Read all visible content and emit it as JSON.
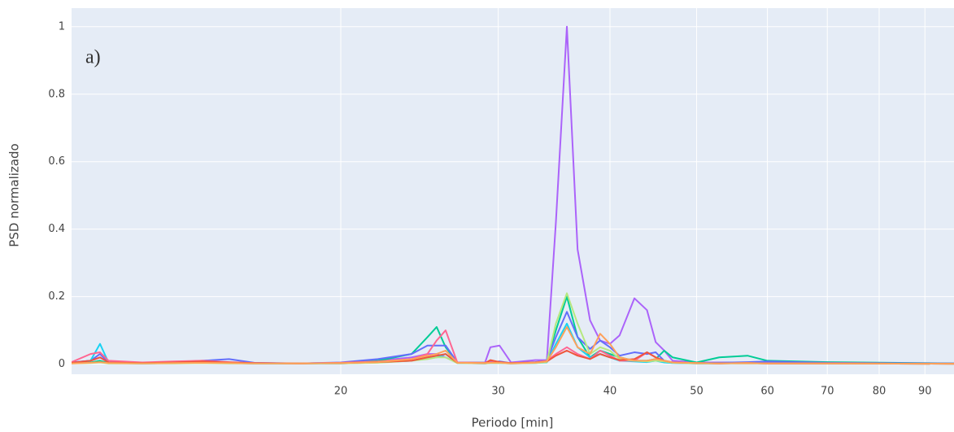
{
  "chart_data": {
    "type": "line",
    "annotation": "a)",
    "x_label": "Periodo [min]",
    "y_label": "PSD normalizado",
    "log_x": true,
    "grid": true,
    "xlim": [
      10,
      97
    ],
    "xticks": [
      20,
      30,
      40,
      50,
      60,
      70,
      80,
      90
    ],
    "ylim": [
      -0.03,
      1.055
    ],
    "yticks": [
      0,
      0.2,
      0.4,
      0.6,
      0.8,
      1
    ],
    "x": [
      10,
      10.5,
      10.76,
      11,
      12,
      13,
      14,
      15,
      16,
      18,
      20,
      22,
      24,
      25,
      25.6,
      26.2,
      27,
      29,
      29.4,
      30.1,
      31,
      33,
      34,
      34.8,
      35.8,
      36.8,
      38,
      39,
      40,
      41,
      42.6,
      44,
      45,
      46,
      47,
      50,
      53,
      57,
      60,
      70,
      97
    ],
    "series": [
      {
        "color": "#ab63fa",
        "values": [
          0.005,
          0.01,
          0.02,
          0.005,
          0.003,
          0.005,
          0.008,
          0.004,
          0.002,
          0.002,
          0.004,
          0.01,
          0.02,
          0.03,
          0.03,
          0.02,
          0.004,
          0.005,
          0.05,
          0.055,
          0.005,
          0.012,
          0.012,
          0.42,
          1,
          0.34,
          0.13,
          0.07,
          0.06,
          0.085,
          0.195,
          0.16,
          0.065,
          0.04,
          0.01,
          0.005,
          0.005,
          0.005,
          0.004,
          0.003,
          0.002
        ]
      },
      {
        "color": "#00cc96",
        "values": [
          0.003,
          0.005,
          0.01,
          0.003,
          0.002,
          0.003,
          0.005,
          0.003,
          0.002,
          0.002,
          0.003,
          0.01,
          0.03,
          0.08,
          0.11,
          0.05,
          0.005,
          0.004,
          0.005,
          0.004,
          0.003,
          0.005,
          0.01,
          0.1,
          0.2,
          0.08,
          0.02,
          0.04,
          0.03,
          0.02,
          0.01,
          0.01,
          0.015,
          0.04,
          0.02,
          0.005,
          0.02,
          0.025,
          0.01,
          0.006,
          0.002
        ]
      },
      {
        "color": "#636efa",
        "values": [
          0.005,
          0.01,
          0.03,
          0.005,
          0.004,
          0.006,
          0.01,
          0.015,
          0.004,
          0.002,
          0.005,
          0.015,
          0.03,
          0.055,
          0.055,
          0.055,
          0.005,
          0.004,
          0.006,
          0.008,
          0.003,
          0.006,
          0.01,
          0.08,
          0.155,
          0.08,
          0.045,
          0.07,
          0.05,
          0.025,
          0.035,
          0.03,
          0.035,
          0.01,
          0.005,
          0.003,
          0.004,
          0.006,
          0.008,
          0.004,
          0.002
        ]
      },
      {
        "color": "#19d3f3",
        "values": [
          0.003,
          0.01,
          0.06,
          0.004,
          0.002,
          0.003,
          0.004,
          0.003,
          0.002,
          0.002,
          0.002,
          0.005,
          0.01,
          0.02,
          0.02,
          0.03,
          0.003,
          0.002,
          0.003,
          0.003,
          0.002,
          0.003,
          0.005,
          0.06,
          0.12,
          0.05,
          0.02,
          0.03,
          0.02,
          0.01,
          0.008,
          0.006,
          0.01,
          0.005,
          0.003,
          0.002,
          0.002,
          0.003,
          0.002,
          0.002,
          0.001
        ]
      },
      {
        "color": "#FF6692",
        "values": [
          0.006,
          0.03,
          0.035,
          0.01,
          0.005,
          0.008,
          0.01,
          0.006,
          0.003,
          0.002,
          0.004,
          0.008,
          0.015,
          0.03,
          0.07,
          0.1,
          0.005,
          0.004,
          0.01,
          0.006,
          0.003,
          0.005,
          0.01,
          0.03,
          0.05,
          0.03,
          0.015,
          0.04,
          0.025,
          0.01,
          0.01,
          0.035,
          0.02,
          0.01,
          0.005,
          0.003,
          0.002,
          0.003,
          0.002,
          0.002,
          0.001
        ]
      },
      {
        "color": "#B6E880",
        "values": [
          0.002,
          0.003,
          0.005,
          0.002,
          0.002,
          0.002,
          0.003,
          0.002,
          0.002,
          0.002,
          0.002,
          0.004,
          0.01,
          0.015,
          0.02,
          0.02,
          0.003,
          0.002,
          0.003,
          0.003,
          0.002,
          0.003,
          0.006,
          0.12,
          0.21,
          0.12,
          0.03,
          0.05,
          0.04,
          0.015,
          0.01,
          0.008,
          0.01,
          0.008,
          0.004,
          0.002,
          0.002,
          0.002,
          0.002,
          0.002,
          0.001
        ]
      },
      {
        "color": "#EF553B",
        "values": [
          0.004,
          0.01,
          0.02,
          0.005,
          0.003,
          0.005,
          0.008,
          0.005,
          0.003,
          0.002,
          0.003,
          0.006,
          0.01,
          0.02,
          0.025,
          0.03,
          0.004,
          0.003,
          0.012,
          0.006,
          0.003,
          0.005,
          0.008,
          0.025,
          0.04,
          0.025,
          0.015,
          0.03,
          0.02,
          0.012,
          0.015,
          0.035,
          0.02,
          0.01,
          0.005,
          0.003,
          0.002,
          0.003,
          0.002,
          0.002,
          0.001
        ]
      },
      {
        "color": "#FFA15A",
        "values": [
          0.002,
          0.004,
          0.006,
          0.003,
          0.002,
          0.003,
          0.004,
          0.003,
          0.002,
          0.002,
          0.003,
          0.006,
          0.015,
          0.025,
          0.03,
          0.04,
          0.004,
          0.003,
          0.004,
          0.004,
          0.002,
          0.004,
          0.008,
          0.05,
          0.11,
          0.05,
          0.03,
          0.09,
          0.06,
          0.02,
          0.01,
          0.01,
          0.015,
          0.01,
          0.005,
          0.003,
          0.002,
          0.003,
          0.002,
          0.002,
          0.001
        ]
      }
    ]
  }
}
